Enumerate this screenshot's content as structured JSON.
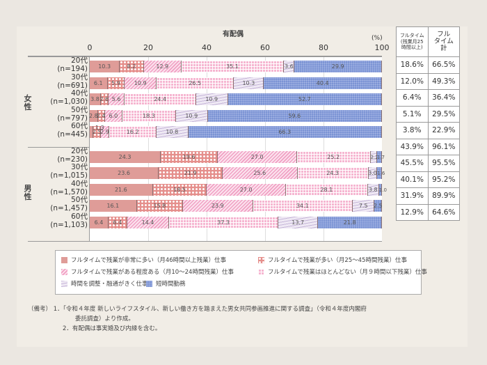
{
  "chart_data": {
    "type": "bar",
    "orientation": "horizontal-stacked-100",
    "title": "有配偶",
    "xlabel": "(%)",
    "xlim": [
      0,
      100
    ],
    "xticks": [
      "0",
      "20",
      "40",
      "60",
      "80",
      "100"
    ],
    "series_names": [
      "フルタイムで残業が非常に多い（月46時間以上残業）仕事",
      "フルタイムで残業が多い（月25～45時間残業）仕事",
      "フルタイムで残業がある程度ある（月10～24時間残業）仕事",
      "フルタイムで残業はほとんどない（月９時間以下残業）仕事",
      "時間を調整・融通がきく仕事",
      "短時間勤務"
    ],
    "groups": [
      {
        "label": "女性",
        "rows": [
          {
            "age": "20代",
            "n": "(n=194)",
            "values": [
              10.3,
              8.2,
              12.9,
              35.1,
              3.6,
              29.9
            ],
            "fulltime_25h": "18.6%",
            "fulltime_total": "66.5%"
          },
          {
            "age": "30代",
            "n": "(n=691)",
            "values": [
              6.1,
              5.9,
              10.9,
              26.5,
              10.3,
              40.4
            ],
            "fulltime_25h": "12.0%",
            "fulltime_total": "49.3%"
          },
          {
            "age": "40代",
            "n": "(n=1,030)",
            "values": [
              3.8,
              2.6,
              5.6,
              24.4,
              10.9,
              52.7
            ],
            "fulltime_25h": "6.4%",
            "fulltime_total": "36.4%"
          },
          {
            "age": "50代",
            "n": "(n=797)",
            "values": [
              2.8,
              2.4,
              6.0,
              18.3,
              10.9,
              59.6
            ],
            "fulltime_25h": "5.1%",
            "fulltime_total": "29.5%"
          },
          {
            "age": "60代",
            "n": "(n=445)",
            "values": [
              1.3,
              2.5,
              2.9,
              16.2,
              10.8,
              66.3
            ],
            "fulltime_25h": "3.8%",
            "fulltime_total": "22.9%"
          }
        ]
      },
      {
        "label": "男性",
        "rows": [
          {
            "age": "20代",
            "n": "(n=230)",
            "values": [
              24.3,
              19.6,
              27.0,
              25.2,
              2.2,
              1.7
            ],
            "fulltime_25h": "43.9%",
            "fulltime_total": "96.1%"
          },
          {
            "age": "30代",
            "n": "(n=1,015)",
            "values": [
              23.6,
              21.9,
              25.6,
              24.3,
              3.0,
              1.6
            ],
            "fulltime_25h": "45.5%",
            "fulltime_total": "95.5%"
          },
          {
            "age": "40代",
            "n": "(n=1,570)",
            "values": [
              21.6,
              18.5,
              27.0,
              28.1,
              3.8,
              1.0
            ],
            "fulltime_25h": "40.1%",
            "fulltime_total": "95.2%"
          },
          {
            "age": "50代",
            "n": "(n=1,457)",
            "values": [
              16.1,
              15.8,
              23.9,
              34.1,
              7.5,
              2.5
            ],
            "fulltime_25h": "31.9%",
            "fulltime_total": "89.9%"
          },
          {
            "age": "60代",
            "n": "(n=1,103)",
            "values": [
              6.4,
              6.4,
              14.4,
              37.3,
              13.7,
              21.8
            ],
            "fulltime_25h": "12.9%",
            "fulltime_total": "64.6%"
          }
        ]
      }
    ],
    "table_headers": [
      "フルタイム（残業月25時間以上）",
      "フルタイム計"
    ],
    "grid": true,
    "legend_position": "bottom"
  },
  "chart": {
    "title": "有配偶",
    "unit": "(%)",
    "ticks": [
      "0",
      "20",
      "40",
      "60",
      "80",
      "100"
    ],
    "group_women": [
      "女",
      "性"
    ],
    "group_men": [
      "男",
      "性"
    ],
    "table_h1": [
      "フルタイム",
      "(残業月25",
      "時間以上)"
    ],
    "table_h2": [
      "フル",
      "タイム",
      "計"
    ],
    "small_label_1_3": "1.3"
  },
  "legend": {
    "items": [
      "フルタイムで残業が非常に多い（月46時間以上残業）仕事",
      "フルタイムで残業が多い（月25～45時間残業）仕事",
      "フルタイムで残業がある程度ある（月10～24時間残業）仕事",
      "フルタイムで残業はほとんどない（月９時間以下残業）仕事",
      "時間を調整・融通がきく仕事",
      "短時間勤務"
    ]
  },
  "notes": {
    "prefix": "（備考）",
    "line1": "1．「令和４年度 新しいライフスタイル、新しい働き方を踏まえた男女共同参画推進に関する調査」（令和４年度内閣府",
    "line1b": "委託調査）より作成。",
    "line2": "2．有配偶は事実婚及び内縁を含む。"
  },
  "colors": {
    "very_high_overtime": "#df9c98",
    "high_overtime": "#e58f8c",
    "some_overtime": "#f19fc3",
    "little_overtime": "#f6b6d1",
    "flexible": "#c5b5d8",
    "short_hours": "#7b93d4"
  }
}
